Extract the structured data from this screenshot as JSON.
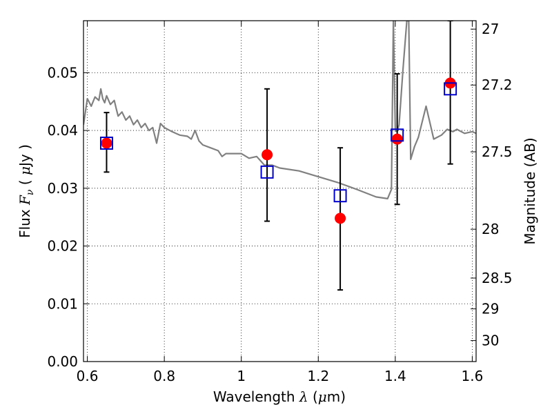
{
  "chart_data": {
    "type": "scatter",
    "xlabel_prefix": "Wavelength",
    "xlabel_symbol": "λ",
    "xlabel_unit_open": " (",
    "xlabel_unit_mu": "μ",
    "xlabel_unit_rest": "m)",
    "ylabel_prefix": "Flux",
    "ylabel_symbol": "F",
    "ylabel_subscript": "ν",
    "ylabel_unit_open": " ( ",
    "ylabel_unit_mu": "μ",
    "ylabel_unit_rest": "Jy )",
    "y2label": "Magnitude (AB)",
    "xlim": [
      0.59,
      1.61
    ],
    "ylim": [
      0.0,
      0.059
    ],
    "grid": true,
    "x_ticks": [
      0.6,
      0.8,
      1.0,
      1.2,
      1.4,
      1.6
    ],
    "x_tick_labels": [
      "0.6",
      "0.8",
      "1",
      "1.2",
      "1.4",
      "1.6"
    ],
    "y_ticks": [
      0.0,
      0.01,
      0.02,
      0.03,
      0.04,
      0.05
    ],
    "y_tick_labels": [
      "0.00",
      "0.01",
      "0.02",
      "0.03",
      "0.04",
      "0.05"
    ],
    "y2_ticks": [
      27,
      27.2,
      27.5,
      28,
      28.5,
      29,
      30
    ],
    "y2_tick_labels": [
      "27",
      "27.2",
      "27.5",
      "28",
      "28.5",
      "29",
      "30"
    ],
    "series": [
      {
        "kind": "model_spectrum",
        "color": "#808080",
        "x": [
          0.59,
          0.6,
          0.61,
          0.62,
          0.63,
          0.635,
          0.64,
          0.645,
          0.65,
          0.66,
          0.67,
          0.675,
          0.68,
          0.69,
          0.7,
          0.71,
          0.72,
          0.73,
          0.74,
          0.75,
          0.76,
          0.77,
          0.78,
          0.79,
          0.8,
          0.82,
          0.84,
          0.86,
          0.87,
          0.88,
          0.89,
          0.9,
          0.92,
          0.94,
          0.95,
          0.96,
          1.0,
          1.02,
          1.04,
          1.06,
          1.08,
          1.1,
          1.15,
          1.2,
          1.25,
          1.3,
          1.35,
          1.38,
          1.39,
          1.395,
          1.4,
          1.405,
          1.41,
          1.42,
          1.43,
          1.435,
          1.44,
          1.45,
          1.46,
          1.48,
          1.5,
          1.52,
          1.535,
          1.55,
          1.56,
          1.58,
          1.6,
          1.61
        ],
        "y": [
          0.041,
          0.0455,
          0.0442,
          0.0458,
          0.0452,
          0.0472,
          0.0455,
          0.0448,
          0.046,
          0.0445,
          0.0452,
          0.0438,
          0.0425,
          0.0432,
          0.0418,
          0.0425,
          0.041,
          0.0418,
          0.0405,
          0.0412,
          0.04,
          0.0405,
          0.0378,
          0.0412,
          0.0405,
          0.0398,
          0.0392,
          0.039,
          0.0385,
          0.04,
          0.0382,
          0.0375,
          0.037,
          0.0365,
          0.0355,
          0.036,
          0.036,
          0.0352,
          0.0355,
          0.034,
          0.034,
          0.0335,
          0.033,
          0.032,
          0.031,
          0.0298,
          0.0285,
          0.0282,
          0.0298,
          0.059,
          0.04,
          0.0398,
          0.041,
          0.0505,
          0.059,
          0.059,
          0.035,
          0.0372,
          0.0388,
          0.0442,
          0.0385,
          0.0392,
          0.0402,
          0.0398,
          0.0402,
          0.0395,
          0.0398,
          0.0395
        ]
      },
      {
        "kind": "model_band_flux",
        "marker": "open-square",
        "color": "#0000cc",
        "x": [
          0.65,
          1.067,
          1.257,
          1.405,
          1.543
        ],
        "y": [
          0.0378,
          0.0328,
          0.0287,
          0.0392,
          0.0472
        ]
      },
      {
        "kind": "observed_flux",
        "marker": "filled-circle",
        "color": "#ff0000",
        "x": [
          0.65,
          1.067,
          1.257,
          1.405,
          1.543
        ],
        "y": [
          0.0378,
          0.0358,
          0.0248,
          0.0385,
          0.0482
        ],
        "yerr_low": [
          0.0328,
          0.0243,
          0.0124,
          0.0272,
          0.0342
        ],
        "yerr_high": [
          0.0431,
          0.0472,
          0.037,
          0.0498,
          0.059
        ]
      }
    ]
  }
}
